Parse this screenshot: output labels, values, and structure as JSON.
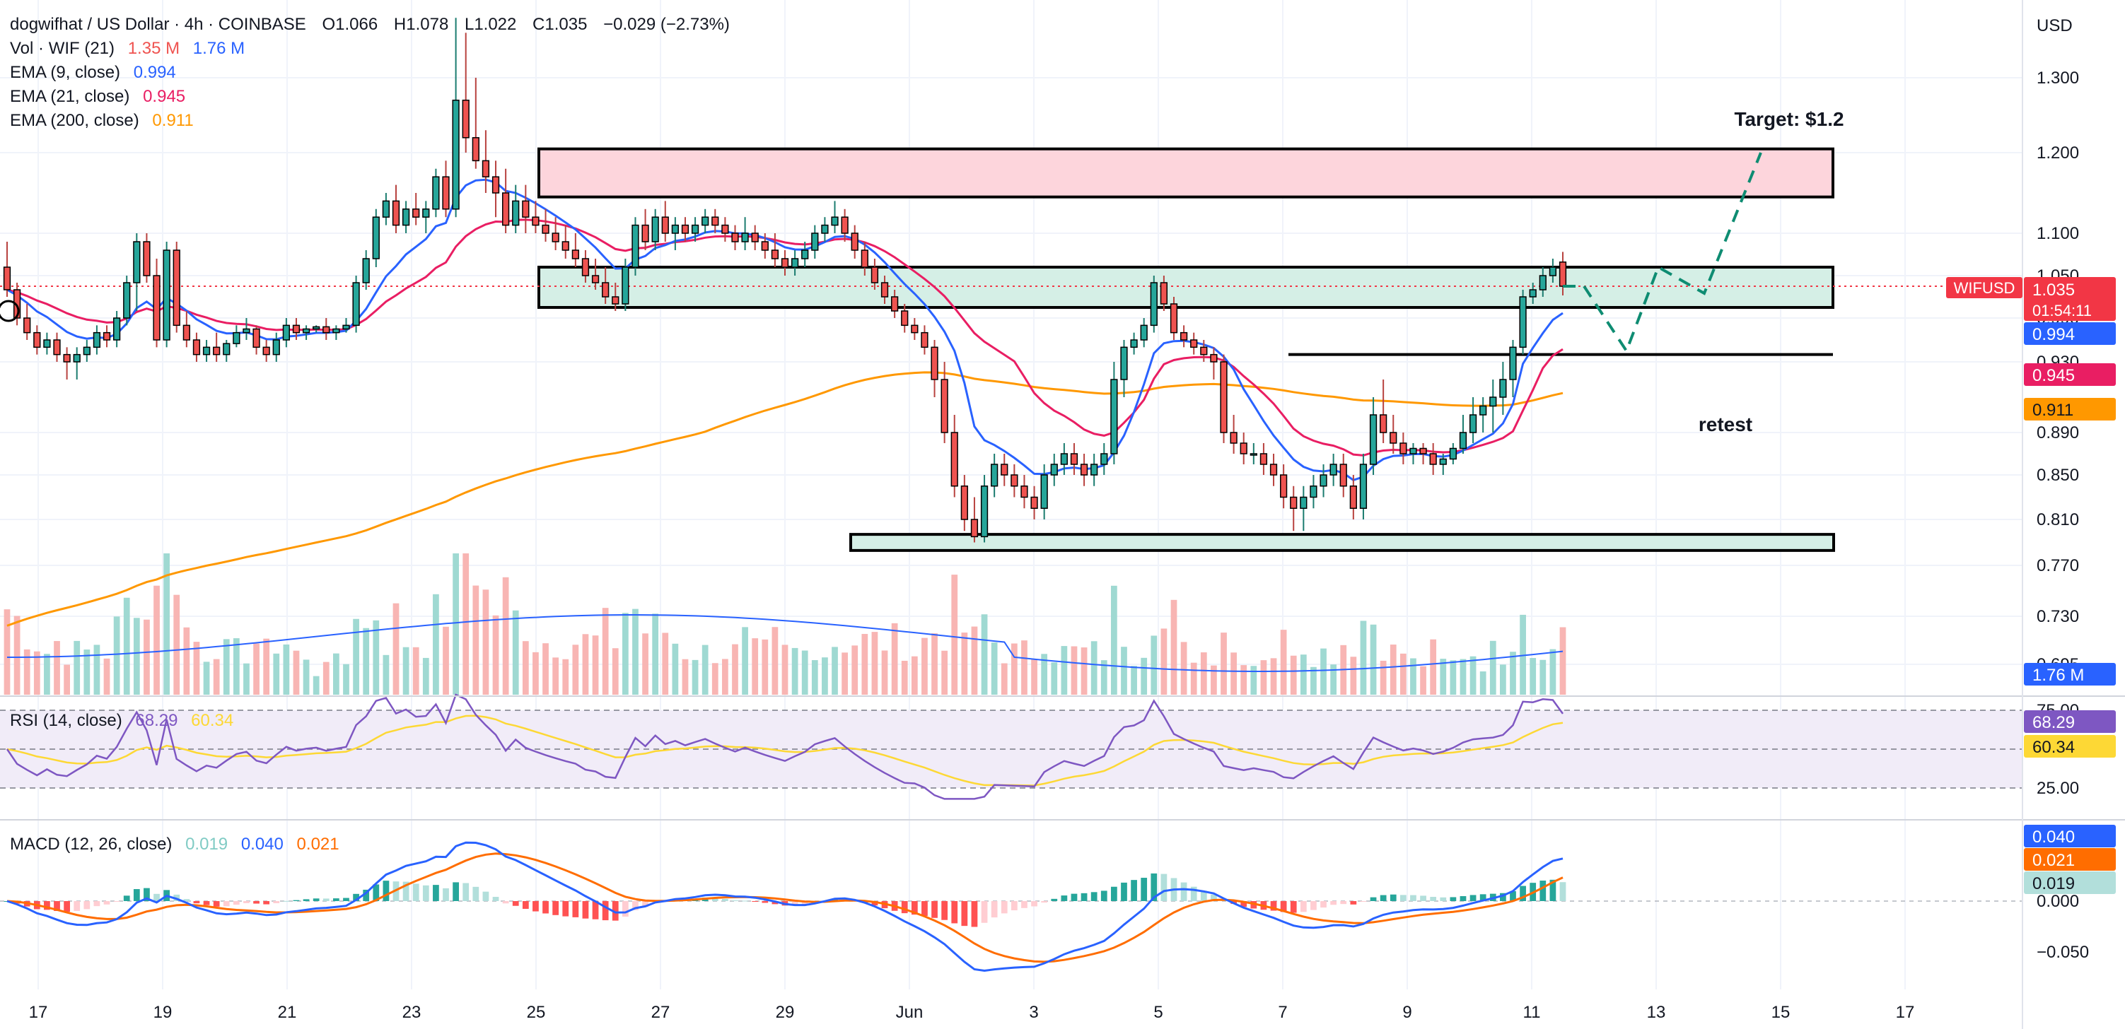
{
  "header": {
    "symbol_line": "dogwifhat / US Dollar · 4h · COINBASE",
    "ohlc": {
      "open": "O1.066",
      "high": "H1.078",
      "low": "L1.022",
      "close": "C1.035",
      "change": "−0.029 (−2.73%)"
    }
  },
  "legend": {
    "volume": {
      "label": "Vol · WIF (21)",
      "v1": "1.35 M",
      "v2": "1.76 M"
    },
    "ema9": {
      "label": "EMA (9, close)",
      "value": "0.994"
    },
    "ema21": {
      "label": "EMA (21, close)",
      "value": "0.945"
    },
    "ema200": {
      "label": "EMA (200, close)",
      "value": "0.911"
    },
    "rsi": {
      "label": "RSI (14, close)",
      "v1": "68.29",
      "v2": "60.34"
    },
    "macd": {
      "label": "MACD (12, 26, close)",
      "v1": "0.019",
      "v2": "0.040",
      "v3": "0.021"
    }
  },
  "annotations": {
    "target": "Target: $1.2",
    "retest": "retest"
  },
  "currency": "USD",
  "price_tag": {
    "symbol": "WIFUSD",
    "price": "1.035",
    "countdown": "01:54:11"
  },
  "badges": {
    "ema9": "0.994",
    "ema21": "0.945",
    "ema200": "0.911",
    "vol": "1.76 M",
    "rsi": "68.29",
    "rsi_ma": "60.34",
    "macd": "0.040",
    "signal": "0.021",
    "hist": "0.019"
  },
  "colors": {
    "up": "#26a69a",
    "down": "#ef5350",
    "ema9": "#2962ff",
    "ema21": "#e91e63",
    "ema200": "#ff9800",
    "rsi": "#7e57c2",
    "rsi_ma": "#fdd835",
    "macd": "#2962ff",
    "signal": "#ff6d00",
    "resistance_zone": "#fdd5dc",
    "support_zone": "#d5efe6",
    "price_tag": "#f23645"
  },
  "chart_data": {
    "type": "candlestick",
    "timeframe": "4h",
    "x_ticks": [
      "17",
      "19",
      "21",
      "23",
      "25",
      "27",
      "29",
      "Jun",
      "3",
      "5",
      "7",
      "9",
      "11",
      "13",
      "15",
      "17"
    ],
    "y_ticks": [
      "1.300",
      "1.200",
      "1.100",
      "1.050",
      "0.990",
      "0.930",
      "0.890",
      "0.850",
      "0.810",
      "0.770",
      "0.730",
      "0.695"
    ],
    "rsi_ticks": [
      "75.00",
      "25.00"
    ],
    "macd_ticks": [
      "0.000",
      "−0.050"
    ],
    "candles": [
      [
        1.06,
        1.09,
        1.02,
        1.03
      ],
      [
        1.03,
        1.04,
        0.98,
        0.99
      ],
      [
        0.99,
        1.01,
        0.96,
        0.97
      ],
      [
        0.97,
        0.98,
        0.94,
        0.95
      ],
      [
        0.95,
        0.97,
        0.94,
        0.96
      ],
      [
        0.96,
        0.97,
        0.93,
        0.94
      ],
      [
        0.94,
        0.95,
        0.92,
        0.93
      ],
      [
        0.93,
        0.95,
        0.92,
        0.94
      ],
      [
        0.94,
        0.96,
        0.93,
        0.95
      ],
      [
        0.95,
        0.98,
        0.94,
        0.97
      ],
      [
        0.97,
        0.98,
        0.95,
        0.96
      ],
      [
        0.96,
        1.0,
        0.95,
        0.99
      ],
      [
        0.99,
        1.05,
        0.98,
        1.04
      ],
      [
        1.04,
        1.1,
        1.0,
        1.09
      ],
      [
        1.09,
        1.1,
        1.04,
        1.05
      ],
      [
        1.05,
        1.07,
        0.95,
        0.96
      ],
      [
        0.96,
        1.09,
        0.95,
        1.08
      ],
      [
        1.08,
        1.09,
        0.97,
        0.98
      ],
      [
        0.98,
        1.0,
        0.95,
        0.96
      ],
      [
        0.96,
        0.97,
        0.93,
        0.94
      ],
      [
        0.94,
        0.96,
        0.93,
        0.95
      ],
      [
        0.95,
        0.97,
        0.93,
        0.94
      ],
      [
        0.94,
        0.96,
        0.93,
        0.955
      ],
      [
        0.955,
        0.98,
        0.95,
        0.97
      ],
      [
        0.97,
        0.99,
        0.96,
        0.975
      ],
      [
        0.975,
        0.98,
        0.94,
        0.95
      ],
      [
        0.95,
        0.96,
        0.93,
        0.94
      ],
      [
        0.94,
        0.97,
        0.93,
        0.96
      ],
      [
        0.96,
        0.99,
        0.95,
        0.98
      ],
      [
        0.98,
        0.99,
        0.96,
        0.97
      ],
      [
        0.97,
        0.98,
        0.96,
        0.975
      ],
      [
        0.975,
        0.98,
        0.97,
        0.978
      ],
      [
        0.978,
        0.99,
        0.96,
        0.97
      ],
      [
        0.97,
        0.98,
        0.96,
        0.975
      ],
      [
        0.975,
        0.99,
        0.97,
        0.98
      ],
      [
        0.98,
        1.05,
        0.97,
        1.04
      ],
      [
        1.04,
        1.08,
        1.03,
        1.07
      ],
      [
        1.07,
        1.13,
        1.06,
        1.12
      ],
      [
        1.12,
        1.15,
        1.11,
        1.14
      ],
      [
        1.14,
        1.16,
        1.1,
        1.11
      ],
      [
        1.11,
        1.14,
        1.1,
        1.13
      ],
      [
        1.13,
        1.15,
        1.11,
        1.12
      ],
      [
        1.12,
        1.14,
        1.1,
        1.13
      ],
      [
        1.13,
        1.18,
        1.12,
        1.17
      ],
      [
        1.17,
        1.19,
        1.12,
        1.13
      ],
      [
        1.13,
        1.38,
        1.12,
        1.27
      ],
      [
        1.27,
        1.36,
        1.2,
        1.22
      ],
      [
        1.22,
        1.3,
        1.18,
        1.19
      ],
      [
        1.19,
        1.23,
        1.15,
        1.17
      ],
      [
        1.17,
        1.19,
        1.12,
        1.15
      ],
      [
        1.15,
        1.18,
        1.1,
        1.11
      ],
      [
        1.11,
        1.16,
        1.1,
        1.14
      ],
      [
        1.14,
        1.16,
        1.1,
        1.12
      ],
      [
        1.12,
        1.14,
        1.1,
        1.11
      ],
      [
        1.11,
        1.13,
        1.09,
        1.1
      ],
      [
        1.1,
        1.12,
        1.08,
        1.09
      ],
      [
        1.09,
        1.11,
        1.07,
        1.08
      ],
      [
        1.08,
        1.1,
        1.06,
        1.07
      ],
      [
        1.07,
        1.08,
        1.04,
        1.05
      ],
      [
        1.05,
        1.07,
        1.03,
        1.04
      ],
      [
        1.04,
        1.06,
        1.01,
        1.02
      ],
      [
        1.02,
        1.04,
        1.0,
        1.01
      ],
      [
        1.01,
        1.07,
        1.0,
        1.06
      ],
      [
        1.06,
        1.12,
        1.05,
        1.11
      ],
      [
        1.11,
        1.13,
        1.08,
        1.09
      ],
      [
        1.09,
        1.13,
        1.08,
        1.12
      ],
      [
        1.12,
        1.14,
        1.09,
        1.1
      ],
      [
        1.1,
        1.12,
        1.08,
        1.11
      ],
      [
        1.11,
        1.12,
        1.09,
        1.1
      ],
      [
        1.1,
        1.12,
        1.09,
        1.11
      ],
      [
        1.11,
        1.13,
        1.1,
        1.12
      ],
      [
        1.12,
        1.13,
        1.1,
        1.11
      ],
      [
        1.11,
        1.12,
        1.09,
        1.1
      ],
      [
        1.1,
        1.11,
        1.08,
        1.09
      ],
      [
        1.09,
        1.12,
        1.08,
        1.1
      ],
      [
        1.1,
        1.11,
        1.08,
        1.09
      ],
      [
        1.09,
        1.1,
        1.07,
        1.08
      ],
      [
        1.08,
        1.1,
        1.06,
        1.07
      ],
      [
        1.07,
        1.08,
        1.05,
        1.06
      ],
      [
        1.06,
        1.08,
        1.05,
        1.07
      ],
      [
        1.07,
        1.09,
        1.06,
        1.08
      ],
      [
        1.08,
        1.11,
        1.07,
        1.1
      ],
      [
        1.1,
        1.12,
        1.09,
        1.11
      ],
      [
        1.11,
        1.14,
        1.1,
        1.12
      ],
      [
        1.12,
        1.13,
        1.09,
        1.1
      ],
      [
        1.1,
        1.11,
        1.07,
        1.08
      ],
      [
        1.08,
        1.09,
        1.05,
        1.06
      ],
      [
        1.06,
        1.07,
        1.03,
        1.04
      ],
      [
        1.04,
        1.05,
        1.01,
        1.02
      ],
      [
        1.02,
        1.03,
        0.99,
        1.0
      ],
      [
        1.0,
        1.01,
        0.97,
        0.98
      ],
      [
        0.98,
        0.99,
        0.96,
        0.97
      ],
      [
        0.97,
        0.98,
        0.94,
        0.95
      ],
      [
        0.95,
        0.96,
        0.91,
        0.92
      ],
      [
        0.92,
        0.93,
        0.88,
        0.89
      ],
      [
        0.89,
        0.9,
        0.83,
        0.84
      ],
      [
        0.84,
        0.85,
        0.8,
        0.81
      ],
      [
        0.81,
        0.83,
        0.79,
        0.795
      ],
      [
        0.795,
        0.85,
        0.79,
        0.84
      ],
      [
        0.84,
        0.87,
        0.83,
        0.86
      ],
      [
        0.86,
        0.87,
        0.84,
        0.85
      ],
      [
        0.85,
        0.86,
        0.83,
        0.84
      ],
      [
        0.84,
        0.85,
        0.82,
        0.83
      ],
      [
        0.83,
        0.84,
        0.81,
        0.82
      ],
      [
        0.82,
        0.86,
        0.81,
        0.85
      ],
      [
        0.85,
        0.87,
        0.84,
        0.86
      ],
      [
        0.86,
        0.88,
        0.85,
        0.87
      ],
      [
        0.87,
        0.88,
        0.85,
        0.86
      ],
      [
        0.86,
        0.87,
        0.84,
        0.85
      ],
      [
        0.85,
        0.87,
        0.84,
        0.86
      ],
      [
        0.86,
        0.88,
        0.85,
        0.87
      ],
      [
        0.87,
        0.93,
        0.86,
        0.92
      ],
      [
        0.92,
        0.96,
        0.91,
        0.95
      ],
      [
        0.95,
        0.97,
        0.94,
        0.96
      ],
      [
        0.96,
        0.99,
        0.95,
        0.98
      ],
      [
        0.98,
        1.05,
        0.97,
        1.04
      ],
      [
        1.04,
        1.05,
        1.0,
        1.01
      ],
      [
        1.01,
        1.02,
        0.96,
        0.97
      ],
      [
        0.97,
        0.98,
        0.95,
        0.96
      ],
      [
        0.96,
        0.97,
        0.94,
        0.95
      ],
      [
        0.95,
        0.96,
        0.93,
        0.94
      ],
      [
        0.94,
        0.95,
        0.92,
        0.93
      ],
      [
        0.93,
        0.94,
        0.88,
        0.89
      ],
      [
        0.89,
        0.9,
        0.87,
        0.88
      ],
      [
        0.88,
        0.89,
        0.86,
        0.87
      ],
      [
        0.87,
        0.88,
        0.86,
        0.87
      ],
      [
        0.87,
        0.88,
        0.85,
        0.86
      ],
      [
        0.86,
        0.87,
        0.84,
        0.85
      ],
      [
        0.85,
        0.86,
        0.82,
        0.83
      ],
      [
        0.83,
        0.84,
        0.8,
        0.82
      ],
      [
        0.82,
        0.84,
        0.8,
        0.83
      ],
      [
        0.83,
        0.85,
        0.82,
        0.84
      ],
      [
        0.84,
        0.86,
        0.83,
        0.85
      ],
      [
        0.85,
        0.87,
        0.84,
        0.86
      ],
      [
        0.86,
        0.87,
        0.83,
        0.84
      ],
      [
        0.84,
        0.85,
        0.81,
        0.82
      ],
      [
        0.82,
        0.87,
        0.81,
        0.86
      ],
      [
        0.86,
        0.91,
        0.85,
        0.9
      ],
      [
        0.9,
        0.92,
        0.88,
        0.89
      ],
      [
        0.89,
        0.9,
        0.87,
        0.88
      ],
      [
        0.88,
        0.89,
        0.86,
        0.87
      ],
      [
        0.87,
        0.88,
        0.86,
        0.875
      ],
      [
        0.875,
        0.88,
        0.86,
        0.87
      ],
      [
        0.87,
        0.88,
        0.85,
        0.86
      ],
      [
        0.86,
        0.87,
        0.85,
        0.865
      ],
      [
        0.865,
        0.88,
        0.86,
        0.875
      ],
      [
        0.875,
        0.9,
        0.87,
        0.89
      ],
      [
        0.89,
        0.91,
        0.88,
        0.9
      ],
      [
        0.9,
        0.91,
        0.89,
        0.905
      ],
      [
        0.905,
        0.92,
        0.89,
        0.91
      ],
      [
        0.91,
        0.93,
        0.9,
        0.92
      ],
      [
        0.92,
        0.96,
        0.91,
        0.95
      ],
      [
        0.95,
        1.03,
        0.94,
        1.02
      ],
      [
        1.02,
        1.04,
        1.01,
        1.03
      ],
      [
        1.03,
        1.06,
        1.02,
        1.05
      ],
      [
        1.05,
        1.07,
        1.04,
        1.06
      ],
      [
        1.066,
        1.078,
        1.022,
        1.035
      ]
    ],
    "ema9_value": 0.994,
    "ema21_value": 0.945,
    "ema200_value": 0.911,
    "rsi_value": 68.29,
    "rsi_ma_value": 60.34,
    "macd_value": 0.04,
    "signal_value": 0.021,
    "hist_value": 0.019,
    "volume_values": [
      1.35,
      1.76
    ],
    "zones": {
      "resistance": [
        1.145,
        1.205
      ],
      "support_top": [
        1.005,
        1.06
      ],
      "support_bottom": [
        0.783,
        0.797
      ],
      "retest_level": 0.94
    },
    "projection": [
      [
        1.035,
        1.02
      ],
      [
        0.945,
        0.94
      ],
      [
        1.06,
        1.09
      ],
      [
        1.025,
        1.05
      ],
      [
        1.2,
        1.2
      ]
    ]
  }
}
